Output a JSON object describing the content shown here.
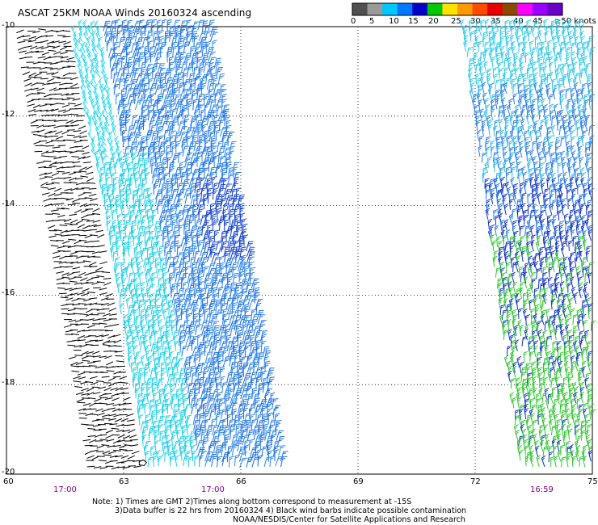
{
  "title": "ASCAT 25KM NOAA Winds 20160324 ascending",
  "legend": {
    "colors": [
      "#505050",
      "#9a9a9a",
      "#00c8ff",
      "#0078ff",
      "#0000c8",
      "#00c800",
      "#ffe100",
      "#ff9900",
      "#ff4a00",
      "#e60000",
      "#8c4a00",
      "#ff00ff",
      "#9900ff",
      "#6a00c8"
    ],
    "labels": [
      "0",
      "5",
      "10",
      "15",
      "20",
      "25",
      "30",
      "35",
      "40",
      "45",
      "≥50 knots"
    ]
  },
  "axes": {
    "x_ticks": [
      "60",
      "63",
      "66",
      "69",
      "72",
      "75"
    ],
    "y_ticks": [
      "-10",
      "-12",
      "-14",
      "-16",
      "-18",
      "-20"
    ],
    "xlim": [
      60,
      75
    ],
    "ylim": [
      -20,
      -10
    ]
  },
  "times": [
    "17:00",
    "17:00",
    "16:59"
  ],
  "notes": {
    "line1": "Note: 1) Times are GMT 2)Times along bottom correspond to measurement at -15S",
    "line2": "3)Data buffer is 22 hrs from 20160324 4) Black wind barbs indicate possible contamination",
    "line3": "NOAA/NESDIS/Center for Satellite Applications and Research"
  },
  "swaths": {
    "west": {
      "lon_range_top": [
        60.4,
        65.2
      ],
      "lon_range_bottom": [
        62.3,
        67.1
      ]
    },
    "east": {
      "lon_range_top": [
        71.7,
        75
      ],
      "lon_range_bottom": [
        73.2,
        75
      ]
    }
  }
}
